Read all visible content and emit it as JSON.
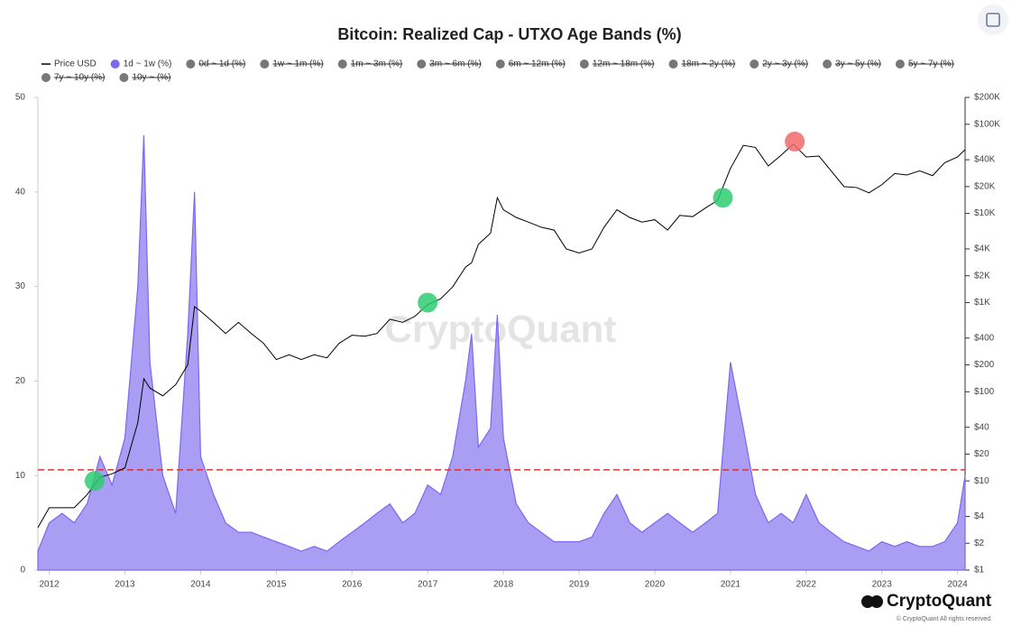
{
  "chart_data": {
    "type": "area_line",
    "title": "Bitcoin: Realized Cap - UTXO Age Bands (%)",
    "watermark": "CryptoQuant",
    "footer_brand": "CryptoQuant",
    "footer_note": "© CryptoQuant All rights reserved.",
    "x": [
      2011.85,
      2012.0,
      2012.17,
      2012.33,
      2012.5,
      2012.67,
      2012.83,
      2013.0,
      2013.17,
      2013.25,
      2013.33,
      2013.5,
      2013.67,
      2013.83,
      2013.92,
      2014.0,
      2014.17,
      2014.33,
      2014.5,
      2014.67,
      2014.83,
      2015.0,
      2015.17,
      2015.33,
      2015.5,
      2015.67,
      2015.83,
      2016.0,
      2016.17,
      2016.33,
      2016.5,
      2016.67,
      2016.83,
      2017.0,
      2017.17,
      2017.33,
      2017.5,
      2017.58,
      2017.67,
      2017.83,
      2017.92,
      2018.0,
      2018.17,
      2018.33,
      2018.5,
      2018.67,
      2018.83,
      2019.0,
      2019.17,
      2019.33,
      2019.5,
      2019.67,
      2019.83,
      2020.0,
      2020.17,
      2020.33,
      2020.5,
      2020.67,
      2020.83,
      2021.0,
      2021.17,
      2021.33,
      2021.5,
      2021.67,
      2021.83,
      2022.0,
      2022.17,
      2022.33,
      2022.5,
      2022.67,
      2022.83,
      2023.0,
      2023.17,
      2023.33,
      2023.5,
      2023.67,
      2023.83,
      2024.0,
      2024.1
    ],
    "series": [
      {
        "name": "Price USD",
        "color": "#000000",
        "axis": "y2",
        "values": [
          3,
          5,
          5,
          5,
          7,
          11,
          12,
          14,
          45,
          140,
          110,
          90,
          120,
          200,
          900,
          800,
          600,
          450,
          600,
          450,
          350,
          230,
          260,
          230,
          260,
          240,
          350,
          430,
          420,
          450,
          650,
          600,
          700,
          950,
          1100,
          1500,
          2500,
          2800,
          4500,
          6000,
          15000,
          11000,
          9000,
          8000,
          7000,
          6500,
          4000,
          3600,
          4000,
          7000,
          11000,
          9000,
          8000,
          8500,
          6500,
          9500,
          9200,
          11500,
          14000,
          32000,
          58000,
          55000,
          34000,
          45000,
          60000,
          43000,
          44000,
          30000,
          20000,
          19500,
          17000,
          21000,
          28000,
          27000,
          30000,
          26500,
          37000,
          43000,
          52000
        ]
      },
      {
        "name": "1d ~ 1w (%)",
        "color": "#7b68ee",
        "values": [
          2,
          5,
          6,
          5,
          7,
          12,
          9,
          14,
          30,
          46,
          22,
          10,
          6,
          25,
          40,
          12,
          8,
          5,
          4,
          4,
          3.5,
          3,
          2.5,
          2,
          2.5,
          2,
          3,
          4,
          5,
          6,
          7,
          5,
          6,
          9,
          8,
          12,
          20,
          25,
          13,
          15,
          27,
          14,
          7,
          5,
          4,
          3,
          3,
          3,
          3.5,
          6,
          8,
          5,
          4,
          5,
          6,
          5,
          4,
          5,
          6,
          22,
          15,
          8,
          5,
          6,
          5,
          8,
          5,
          4,
          3,
          2.5,
          2,
          3,
          2.5,
          3,
          2.5,
          2.5,
          3,
          5,
          10
        ]
      }
    ],
    "hidden_series": [
      "0d ~ 1d (%)",
      "1w ~ 1m (%)",
      "1m ~ 3m (%)",
      "3m ~ 6m (%)",
      "6m ~ 12m (%)",
      "12m ~ 18m (%)",
      "18m ~ 2y (%)",
      "2y ~ 3y (%)",
      "3y ~ 5y (%)",
      "5y ~ 7y (%)",
      "7y ~ 10y (%)",
      "10y ~ (%)"
    ],
    "hidden_color": "#777777",
    "xlim": [
      2011.85,
      2024.1
    ],
    "xticks": [
      2012,
      2013,
      2014,
      2015,
      2016,
      2017,
      2018,
      2019,
      2020,
      2021,
      2022,
      2023,
      2024
    ],
    "ylim": [
      0,
      50
    ],
    "yticks": [
      0,
      10,
      20,
      30,
      40,
      50
    ],
    "y2_log": true,
    "y2lim": [
      1,
      200000
    ],
    "y2ticks": [
      {
        "value": 1,
        "label": "$1"
      },
      {
        "value": 2,
        "label": "$2"
      },
      {
        "value": 4,
        "label": "$4"
      },
      {
        "value": 10,
        "label": "$10"
      },
      {
        "value": 20,
        "label": "$20"
      },
      {
        "value": 40,
        "label": "$40"
      },
      {
        "value": 100,
        "label": "$100"
      },
      {
        "value": 200,
        "label": "$200"
      },
      {
        "value": 400,
        "label": "$400"
      },
      {
        "value": 1000,
        "label": "$1K"
      },
      {
        "value": 2000,
        "label": "$2K"
      },
      {
        "value": 4000,
        "label": "$4K"
      },
      {
        "value": 10000,
        "label": "$10K"
      },
      {
        "value": 20000,
        "label": "$20K"
      },
      {
        "value": 40000,
        "label": "$40K"
      },
      {
        "value": 100000,
        "label": "$100K"
      },
      {
        "value": 200000,
        "label": "$200K"
      }
    ],
    "threshold": {
      "value": 10.6,
      "color": "#e03030"
    },
    "markers": [
      {
        "x": 2012.6,
        "y2": 10,
        "color": "#2ecc71"
      },
      {
        "x": 2017.0,
        "y2": 1000,
        "color": "#2ecc71"
      },
      {
        "x": 2020.9,
        "y2": 15000,
        "color": "#2ecc71"
      },
      {
        "x": 2021.85,
        "y2": 64000,
        "color": "#f06a6a"
      }
    ]
  }
}
